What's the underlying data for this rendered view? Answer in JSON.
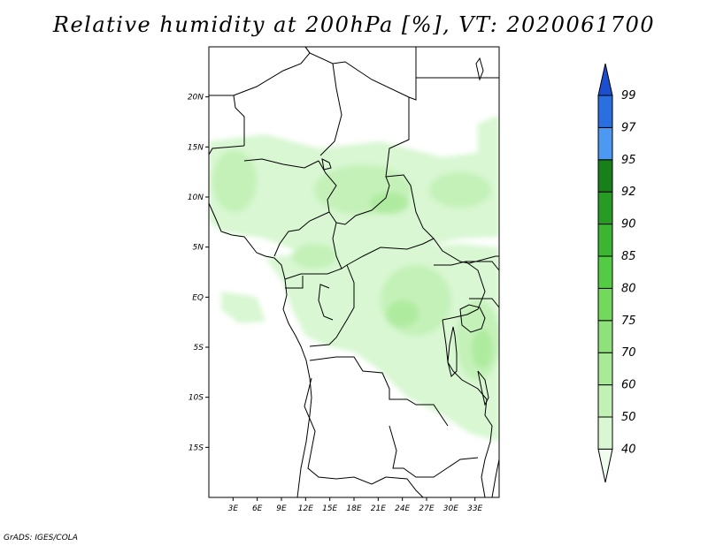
{
  "title": "Relative humidity at 200hPa [%], VT: 2020061700",
  "credit": "GrADS: IGES/COLA",
  "map": {
    "lon_range": [
      0,
      36
    ],
    "lat_range": [
      -20,
      25
    ],
    "lat_ticks": [
      "20N",
      "15N",
      "10N",
      "5N",
      "EQ",
      "5S",
      "10S",
      "15S"
    ],
    "lon_ticks": [
      "3E",
      "6E",
      "9E",
      "12E",
      "15E",
      "18E",
      "21E",
      "24E",
      "27E",
      "30E",
      "33E"
    ]
  },
  "colorbar": {
    "levels": [
      "40",
      "50",
      "60",
      "70",
      "75",
      "80",
      "85",
      "90",
      "92",
      "95",
      "97",
      "99"
    ],
    "colors": [
      "#f0fcee",
      "#d8f7d2",
      "#c2f1b6",
      "#a9ea98",
      "#8fe27b",
      "#72d95d",
      "#54cb45",
      "#3cb632",
      "#279c24",
      "#188018",
      "#4d98f0",
      "#2a6fe0",
      "#1c4fd0"
    ]
  },
  "chart_data": {
    "type": "heatmap",
    "title": "Relative humidity at 200hPa [%], VT: 2020061700",
    "variable": "Relative humidity at 200hPa",
    "units": "%",
    "valid_time": "2020061700",
    "lon_range": [
      0,
      36
    ],
    "lat_range": [
      -20,
      25
    ],
    "contour_levels": [
      40,
      50,
      60,
      70,
      75,
      80,
      85,
      90,
      92,
      95,
      97,
      99
    ],
    "observed_value_range": [
      40,
      70
    ]
  }
}
